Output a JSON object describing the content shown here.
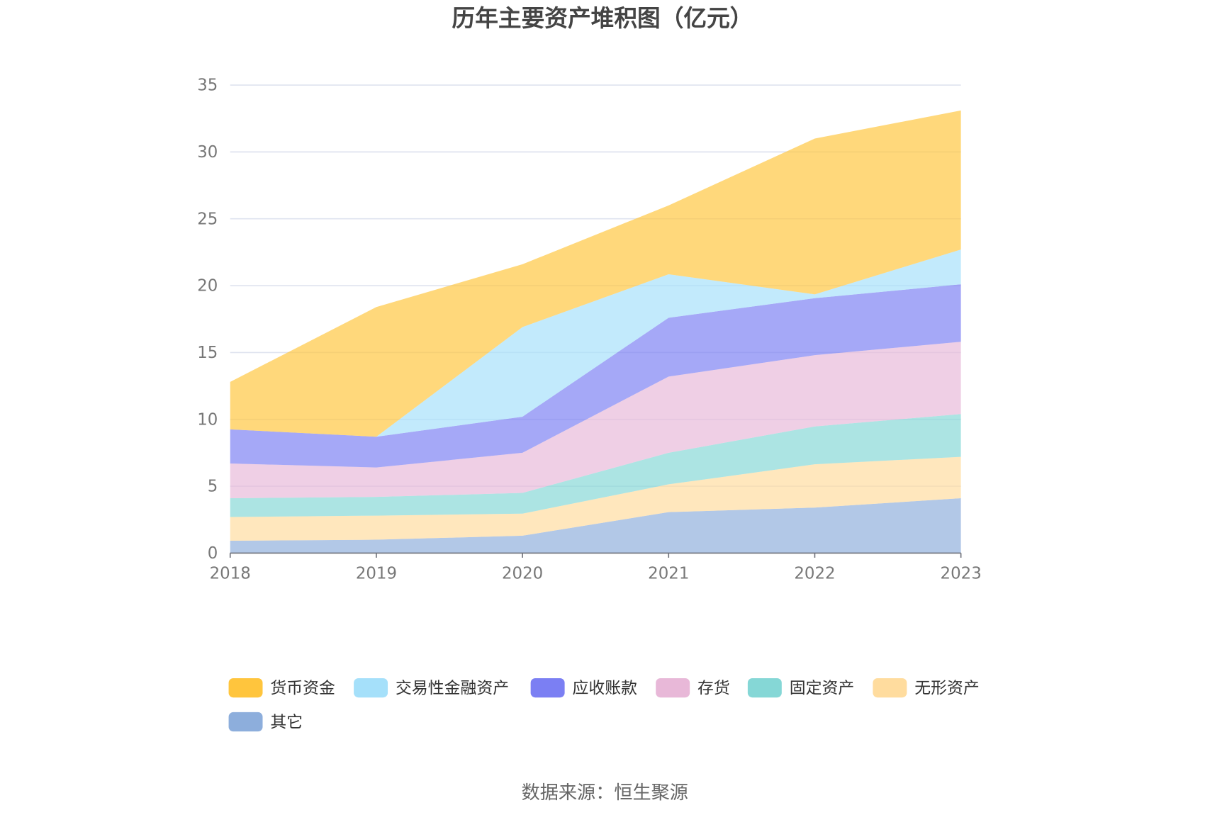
{
  "chart_data": {
    "type": "area",
    "stacked": true,
    "title": "历年主要资产堆积图（亿元）",
    "xlabel": "",
    "ylabel": "",
    "categories": [
      "2018",
      "2019",
      "2020",
      "2021",
      "2022",
      "2023"
    ],
    "ylim": [
      0,
      35
    ],
    "yticks": [
      0,
      5,
      10,
      15,
      20,
      25,
      30,
      35
    ],
    "grid": true,
    "legend_position": "bottom",
    "series": [
      {
        "name": "货币资金",
        "color": "#ffc53d",
        "values": [
          3.55,
          9.7,
          4.7,
          5.15,
          11.65,
          10.4
        ]
      },
      {
        "name": "交易性金融资产",
        "color": "#a5e0fa",
        "values": [
          0,
          0,
          6.7,
          3.25,
          0.29,
          2.6
        ]
      },
      {
        "name": "应收账款",
        "color": "#7b7ff3",
        "values": [
          2.55,
          2.3,
          2.7,
          4.4,
          4.26,
          4.3
        ]
      },
      {
        "name": "存货",
        "color": "#e8b8d8",
        "values": [
          2.6,
          2.2,
          3.0,
          5.7,
          5.33,
          5.4
        ]
      },
      {
        "name": "固定资产",
        "color": "#85d7d6",
        "values": [
          1.4,
          1.4,
          1.55,
          2.36,
          2.83,
          3.2
        ]
      },
      {
        "name": "无形资产",
        "color": "#ffdc9e",
        "values": [
          1.78,
          1.8,
          1.65,
          2.08,
          3.24,
          3.1
        ]
      },
      {
        "name": "其它",
        "color": "#8daedc",
        "values": [
          0.92,
          1.0,
          1.3,
          3.06,
          3.4,
          4.1
        ]
      }
    ]
  },
  "source": "数据来源：恒生聚源"
}
